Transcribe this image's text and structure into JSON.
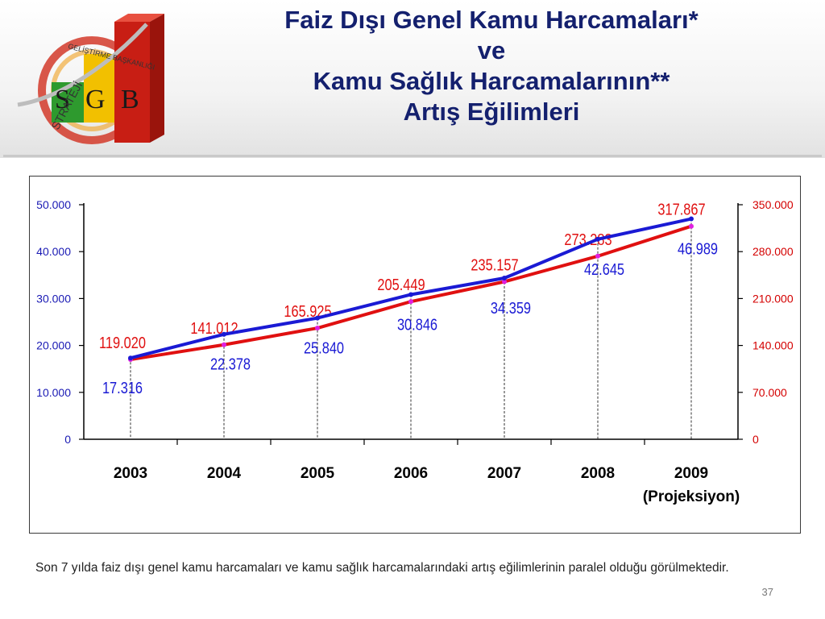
{
  "header": {
    "title_lines": [
      "Faiz Dışı Genel Kamu Harcamaları*",
      "ve",
      "Kamu Sağlık Harcamalarının**",
      "Artış Eğilimleri"
    ]
  },
  "logo": {
    "letters": [
      "S",
      "G",
      "B"
    ],
    "arc_text": "GELİŞTİRME BAŞKANLIĞI",
    "vertical_text": "STRATEJİ",
    "colors": {
      "s": "#2e9a2e",
      "g": "#f2c000",
      "b": "#c81e14",
      "ring": "#d23a2a"
    }
  },
  "chart_data": {
    "type": "line",
    "categories": [
      "2003",
      "2004",
      "2005",
      "2006",
      "2007",
      "2008",
      "2009"
    ],
    "category_sublabels": [
      "",
      "",
      "",
      "",
      "",
      "",
      "(Projeksiyon)"
    ],
    "left_axis": {
      "ticks": [
        "0",
        "10.000",
        "20.000",
        "30.000",
        "40.000",
        "50.000"
      ],
      "tick_values": [
        0,
        10000,
        20000,
        30000,
        40000,
        50000
      ],
      "range": [
        0,
        50000
      ],
      "color": "#1a1ab4"
    },
    "right_axis": {
      "ticks": [
        "0",
        "70.000",
        "140.000",
        "210.000",
        "280.000",
        "350.000"
      ],
      "tick_values": [
        0,
        70000,
        140000,
        210000,
        280000,
        350000
      ],
      "range": [
        0,
        350000
      ],
      "color": "#d40000"
    },
    "series": [
      {
        "axis": "right",
        "color": "#e01010",
        "marker_color": "#e020e0",
        "values": [
          119020,
          141012,
          165925,
          205449,
          235157,
          273283,
          317867
        ],
        "labels": [
          "119.020",
          "141.012",
          "165.925",
          "205.449",
          "235.157",
          "273.283",
          "317.867"
        ]
      },
      {
        "axis": "left",
        "color": "#1a1ad4",
        "marker_color": "#1a1ad4",
        "values": [
          17316,
          22378,
          25840,
          30846,
          34359,
          42645,
          46989
        ],
        "labels": [
          "17.316",
          "22.378",
          "25.840",
          "30.846",
          "34.359",
          "42.645",
          "46.989"
        ]
      }
    ],
    "grid": false
  },
  "caption": "Son 7 yılda faiz dışı genel kamu harcamaları ve kamu sağlık harcamalarındaki artış eğilimlerinin paralel olduğu görülmektedir.",
  "page_number": "37"
}
